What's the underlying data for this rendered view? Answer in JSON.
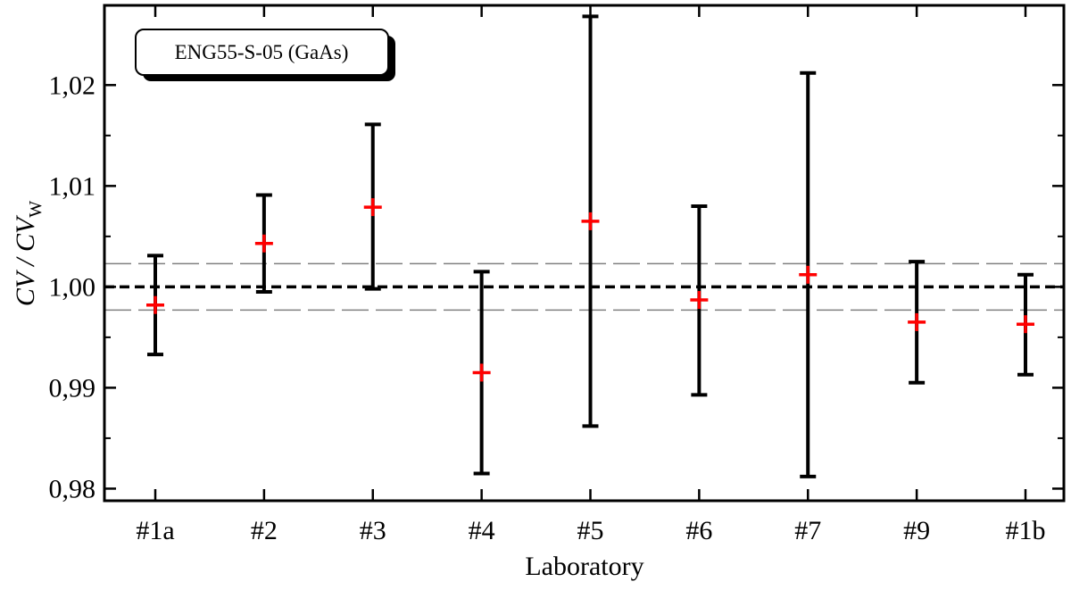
{
  "chart_data": {
    "type": "scatter",
    "categories": [
      "#1a",
      "#2",
      "#3",
      "#4",
      "#5",
      "#6",
      "#7",
      "#9",
      "#1b"
    ],
    "series": [
      {
        "values": [
          0.9982,
          1.0043,
          1.0079,
          0.9915,
          1.0065,
          0.9987,
          1.0012,
          0.9965,
          0.9963
        ],
        "err_low": [
          0.9933,
          0.9995,
          0.9998,
          0.9815,
          0.9862,
          0.9893,
          0.9812,
          0.9905,
          0.9913
        ],
        "err_high": [
          1.0031,
          1.0091,
          1.0161,
          1.0015,
          1.0268,
          1.008,
          1.0212,
          1.0025,
          1.0012
        ],
        "marker_color": "#ff0000",
        "error_bar_color": "#000000"
      }
    ],
    "reference_lines": [
      {
        "y": 1.0,
        "style": "dashed-thick",
        "color": "#000000"
      },
      {
        "y": 1.0023,
        "style": "dashed-thin",
        "color": "#808080"
      },
      {
        "y": 0.9977,
        "style": "dashed-thin",
        "color": "#808080"
      }
    ],
    "annotation": "ENG55-S-05 (GaAs)",
    "xlabel": "Laboratory",
    "ylabel": {
      "main": "CV / CV",
      "subscript": "W"
    },
    "y_ticks": [
      0.98,
      0.99,
      1.0,
      1.01,
      1.02
    ],
    "y_tick_labels": [
      "0,98",
      "0,99",
      "1,00",
      "1,01",
      "1,02"
    ],
    "ylim": [
      0.9788,
      1.0279
    ],
    "grid": false,
    "legend": "none"
  }
}
